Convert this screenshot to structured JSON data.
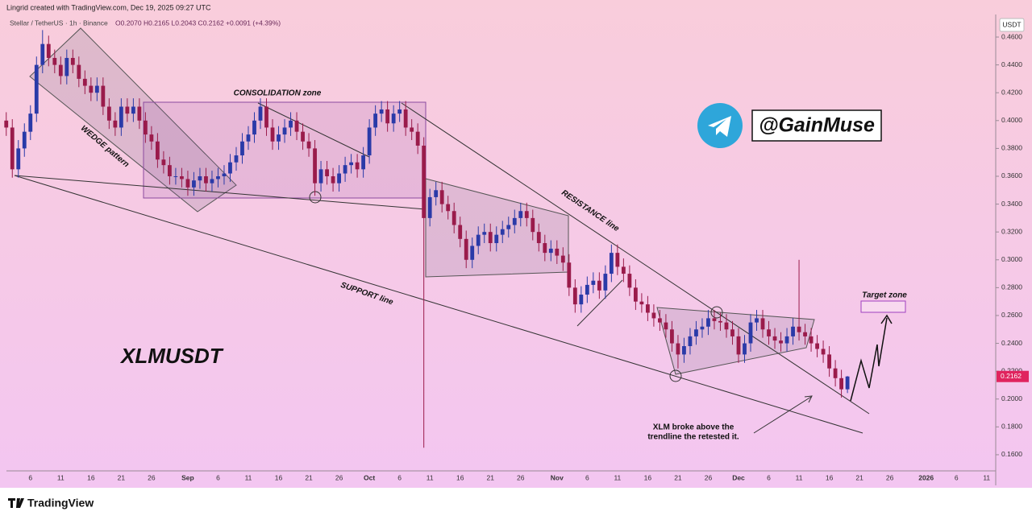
{
  "header": "Lingrid created with TradingView.com, Dec 19, 2025 09:27 UTC",
  "footer_brand": "TradingView",
  "chart_data": {
    "type": "candlestick",
    "symbol": "Stellar / TetherUS · 1h · Binance",
    "ohlc_legend": "O0.2070 H0.2165 L0.2043 C0.2162 +0.0091 (+4.39%)",
    "currency": "USDT",
    "title": "XLMUSDT",
    "channel": "@GainMuse",
    "annotations": {
      "wedge": "WEDGE pattern",
      "consolidation": "CONSOLIDATION zone",
      "resistance": "RESISTANCE line",
      "support": "SUPPORT line",
      "target": "Target zone",
      "note": [
        "XLM broke above the",
        "trendline the retested it."
      ]
    },
    "up_color": "#2a3aa8",
    "down_color": "#9a1b4b",
    "ylim": [
      0.1484,
      0.4762
    ],
    "yticks": [
      {
        "value": 0.16,
        "label": "0.1600"
      },
      {
        "value": 0.18,
        "label": "0.1800"
      },
      {
        "value": 0.2,
        "label": "0.2000"
      },
      {
        "value": 0.22,
        "label": "0.2200"
      },
      {
        "value": 0.24,
        "label": "0.2400"
      },
      {
        "value": 0.26,
        "label": "0.2600"
      },
      {
        "value": 0.28,
        "label": "0.2800"
      },
      {
        "value": 0.3,
        "label": "0.3000"
      },
      {
        "value": 0.32,
        "label": "0.3200"
      },
      {
        "value": 0.34,
        "label": "0.3400"
      },
      {
        "value": 0.36,
        "label": "0.3600"
      },
      {
        "value": 0.38,
        "label": "0.3800"
      },
      {
        "value": 0.4,
        "label": "0.4000"
      },
      {
        "value": 0.42,
        "label": "0.4200"
      },
      {
        "value": 0.44,
        "label": "0.4400"
      },
      {
        "value": 0.46,
        "label": "0.4600"
      }
    ],
    "grid": false,
    "categories": [
      null,
      null,
      null,
      null,
      "6",
      null,
      null,
      null,
      null,
      "11",
      null,
      null,
      null,
      null,
      "16",
      null,
      null,
      null,
      null,
      "21",
      null,
      null,
      null,
      null,
      "26",
      null,
      null,
      null,
      null,
      null,
      "Sep",
      null,
      null,
      null,
      null,
      "6",
      null,
      null,
      null,
      null,
      "11",
      null,
      null,
      null,
      null,
      "16",
      null,
      null,
      null,
      null,
      "21",
      null,
      null,
      null,
      null,
      "26",
      null,
      null,
      null,
      null,
      "Oct",
      null,
      null,
      null,
      null,
      "6",
      null,
      null,
      null,
      null,
      "11",
      null,
      null,
      null,
      null,
      "16",
      null,
      null,
      null,
      null,
      "21",
      null,
      null,
      null,
      null,
      "26",
      null,
      null,
      null,
      null,
      null,
      "Nov",
      null,
      null,
      null,
      null,
      "6",
      null,
      null,
      null,
      null,
      "11",
      null,
      null,
      null,
      null,
      "16",
      null,
      null,
      null,
      null,
      "21",
      null,
      null,
      null,
      null,
      "26",
      null,
      null,
      null,
      null,
      "Dec",
      null,
      null,
      null,
      null,
      "6",
      null,
      null,
      null,
      null,
      "11",
      null,
      null,
      null,
      null,
      "16",
      null,
      null,
      null,
      null,
      "21",
      null,
      null,
      null,
      null,
      "26",
      null,
      null,
      null,
      null,
      null,
      "2026",
      null,
      null,
      null,
      null,
      "6",
      null,
      null,
      null,
      null,
      "11",
      null
    ],
    "open": [
      0.4,
      0.395,
      0.365,
      0.38,
      0.392,
      0.405,
      0.44,
      0.455,
      0.445,
      0.44,
      0.432,
      0.445,
      0.44,
      0.43,
      0.425,
      0.42,
      0.425,
      0.41,
      0.4,
      0.395,
      0.41,
      0.405,
      0.41,
      0.4,
      0.39,
      0.385,
      0.372,
      0.368,
      0.36,
      0.36,
      0.358,
      0.352,
      0.357,
      0.36,
      0.355,
      0.358,
      0.36,
      0.362,
      0.37,
      0.375,
      0.385,
      0.39,
      0.4,
      0.41,
      0.395,
      0.385,
      0.39,
      0.395,
      0.4,
      0.392,
      0.385,
      0.38,
      0.355,
      0.365,
      0.36,
      0.355,
      0.362,
      0.368,
      0.37,
      0.365,
      0.375,
      0.395,
      0.405,
      0.408,
      0.398,
      0.405,
      0.408,
      0.395,
      0.392,
      0.382,
      0.33,
      0.345,
      0.35,
      0.34,
      0.335,
      0.325,
      0.315,
      0.3,
      0.31,
      0.318,
      0.32,
      0.312,
      0.318,
      0.322,
      0.325,
      0.33,
      0.335,
      0.33,
      0.32,
      0.312,
      0.305,
      0.308,
      0.303,
      0.298,
      0.28,
      0.268,
      0.275,
      0.282,
      0.285,
      0.278,
      0.29,
      0.305,
      0.295,
      0.29,
      0.28,
      0.27,
      0.268,
      0.262,
      0.258,
      0.255,
      0.25,
      0.24,
      0.232,
      0.238,
      0.245,
      0.25,
      0.252,
      0.258,
      0.256,
      0.255,
      0.25,
      0.245,
      0.232,
      0.24,
      0.255,
      0.258,
      0.25,
      0.245,
      0.242,
      0.24,
      0.245,
      0.252,
      0.248,
      0.245,
      0.24,
      0.236,
      0.232,
      0.222,
      0.215,
      0.207,
      null,
      null,
      null,
      null,
      null,
      null,
      null,
      null,
      null,
      null,
      null,
      null,
      null,
      null,
      null,
      null,
      null,
      null,
      null,
      null,
      null,
      null,
      null,
      null
    ],
    "high": [
      0.406,
      0.401,
      0.386,
      0.398,
      0.411,
      0.446,
      0.465,
      0.461,
      0.451,
      0.446,
      0.451,
      0.451,
      0.446,
      0.436,
      0.431,
      0.431,
      0.431,
      0.416,
      0.406,
      0.416,
      0.416,
      0.416,
      0.416,
      0.406,
      0.396,
      0.391,
      0.378,
      0.374,
      0.366,
      0.366,
      0.364,
      0.363,
      0.366,
      0.366,
      0.364,
      0.366,
      0.368,
      0.376,
      0.381,
      0.391,
      0.396,
      0.406,
      0.416,
      0.416,
      0.401,
      0.396,
      0.401,
      0.406,
      0.406,
      0.398,
      0.391,
      0.386,
      0.371,
      0.371,
      0.366,
      0.368,
      0.374,
      0.376,
      0.376,
      0.381,
      0.401,
      0.411,
      0.414,
      0.414,
      0.411,
      0.414,
      0.414,
      0.401,
      0.398,
      0.388,
      0.351,
      0.356,
      0.356,
      0.346,
      0.341,
      0.331,
      0.321,
      0.316,
      0.324,
      0.326,
      0.326,
      0.324,
      0.328,
      0.331,
      0.336,
      0.341,
      0.341,
      0.336,
      0.326,
      0.318,
      0.314,
      0.314,
      0.309,
      0.304,
      0.286,
      0.281,
      0.288,
      0.291,
      0.291,
      0.296,
      0.311,
      0.311,
      0.301,
      0.296,
      0.286,
      0.276,
      0.274,
      0.268,
      0.264,
      0.261,
      0.256,
      0.246,
      0.244,
      0.251,
      0.256,
      0.258,
      0.264,
      0.264,
      0.262,
      0.261,
      0.256,
      0.251,
      0.246,
      0.261,
      0.264,
      0.264,
      0.256,
      0.251,
      0.248,
      0.251,
      0.258,
      0.3,
      0.254,
      0.251,
      0.246,
      0.242,
      0.238,
      0.228,
      0.221,
      0.2165,
      null,
      null,
      null,
      null,
      null,
      null,
      null,
      null,
      null,
      null,
      null,
      null,
      null,
      null,
      null,
      null,
      null,
      null,
      null,
      null,
      null,
      null,
      null,
      null
    ],
    "low": [
      0.389,
      0.359,
      0.359,
      0.374,
      0.386,
      0.399,
      0.434,
      0.439,
      0.434,
      0.426,
      0.426,
      0.434,
      0.424,
      0.419,
      0.414,
      0.414,
      0.404,
      0.394,
      0.389,
      0.389,
      0.399,
      0.399,
      0.394,
      0.384,
      0.379,
      0.366,
      0.362,
      0.354,
      0.354,
      0.352,
      0.346,
      0.346,
      0.351,
      0.349,
      0.349,
      0.352,
      0.354,
      0.356,
      0.364,
      0.369,
      0.379,
      0.384,
      0.394,
      0.389,
      0.379,
      0.379,
      0.384,
      0.389,
      0.386,
      0.379,
      0.374,
      0.346,
      0.349,
      0.354,
      0.349,
      0.349,
      0.356,
      0.362,
      0.359,
      0.359,
      0.369,
      0.389,
      0.399,
      0.392,
      0.392,
      0.399,
      0.389,
      0.386,
      0.376,
      0.165,
      0.324,
      0.339,
      0.334,
      0.329,
      0.319,
      0.309,
      0.294,
      0.294,
      0.304,
      0.312,
      0.306,
      0.306,
      0.312,
      0.316,
      0.319,
      0.324,
      0.324,
      0.314,
      0.306,
      0.299,
      0.299,
      0.297,
      0.292,
      0.274,
      0.262,
      0.262,
      0.269,
      0.276,
      0.272,
      0.272,
      0.284,
      0.289,
      0.284,
      0.274,
      0.264,
      0.262,
      0.256,
      0.252,
      0.249,
      0.244,
      0.234,
      0.222,
      0.226,
      0.232,
      0.239,
      0.244,
      0.246,
      0.25,
      0.249,
      0.244,
      0.239,
      0.226,
      0.226,
      0.234,
      0.249,
      0.244,
      0.239,
      0.236,
      0.234,
      0.234,
      0.239,
      0.242,
      0.239,
      0.234,
      0.23,
      0.226,
      0.216,
      0.209,
      0.201,
      0.2043,
      null,
      null,
      null,
      null,
      null,
      null,
      null,
      null,
      null,
      null,
      null,
      null,
      null,
      null,
      null,
      null,
      null,
      null,
      null,
      null,
      null,
      null,
      null,
      null
    ],
    "close": [
      0.395,
      0.365,
      0.38,
      0.392,
      0.405,
      0.44,
      0.455,
      0.445,
      0.44,
      0.432,
      0.445,
      0.44,
      0.43,
      0.425,
      0.42,
      0.425,
      0.41,
      0.4,
      0.395,
      0.41,
      0.405,
      0.41,
      0.4,
      0.39,
      0.385,
      0.372,
      0.368,
      0.36,
      0.36,
      0.358,
      0.352,
      0.357,
      0.36,
      0.355,
      0.358,
      0.36,
      0.362,
      0.37,
      0.375,
      0.385,
      0.39,
      0.4,
      0.41,
      0.395,
      0.385,
      0.39,
      0.395,
      0.4,
      0.392,
      0.385,
      0.38,
      0.355,
      0.365,
      0.36,
      0.355,
      0.362,
      0.368,
      0.37,
      0.365,
      0.375,
      0.395,
      0.405,
      0.408,
      0.398,
      0.405,
      0.408,
      0.395,
      0.392,
      0.382,
      0.33,
      0.345,
      0.35,
      0.34,
      0.335,
      0.325,
      0.315,
      0.3,
      0.31,
      0.318,
      0.32,
      0.312,
      0.318,
      0.322,
      0.325,
      0.33,
      0.335,
      0.33,
      0.32,
      0.312,
      0.305,
      0.308,
      0.303,
      0.298,
      0.28,
      0.268,
      0.275,
      0.282,
      0.285,
      0.278,
      0.29,
      0.305,
      0.295,
      0.29,
      0.28,
      0.27,
      0.268,
      0.262,
      0.258,
      0.255,
      0.25,
      0.24,
      0.232,
      0.238,
      0.245,
      0.25,
      0.252,
      0.258,
      0.256,
      0.255,
      0.25,
      0.245,
      0.232,
      0.24,
      0.255,
      0.258,
      0.25,
      0.245,
      0.242,
      0.24,
      0.245,
      0.252,
      0.248,
      0.245,
      0.24,
      0.236,
      0.232,
      0.222,
      0.215,
      0.207,
      0.2162,
      null,
      null,
      null,
      null,
      null,
      null,
      null,
      null,
      null,
      null,
      null,
      null,
      null,
      null,
      null,
      null,
      null,
      null,
      null,
      null,
      null,
      null,
      null,
      null
    ]
  }
}
